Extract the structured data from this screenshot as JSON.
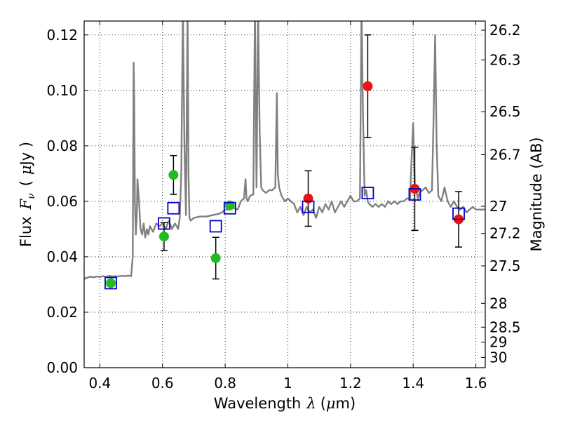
{
  "chart_data": {
    "type": "scatter",
    "xlabel_prefix": "Wavelength",
    "xlabel_math": "λ",
    "xlabel_unit_open": "(",
    "xlabel_unit_mu": "μ",
    "xlabel_unit_rest": "m)",
    "ylabel_prefix": "Flux",
    "ylabel_math_F": "F",
    "ylabel_math_sub": "ν",
    "ylabel_unit_open": "(",
    "ylabel_unit_mu": "μ",
    "ylabel_unit_rest": "Jy )",
    "y2label": "Magnitude (AB)",
    "xlim": [
      0.35,
      1.63
    ],
    "ylim": [
      0.0,
      0.125
    ],
    "grid": true,
    "x_ticks": [
      0.4,
      0.6,
      0.8,
      1.0,
      1.2,
      1.4,
      1.6
    ],
    "x_tick_labels": [
      "0.4",
      "0.6",
      "0.8",
      "1",
      "1.2",
      "1.4",
      "1.6"
    ],
    "y_ticks": [
      0.0,
      0.02,
      0.04,
      0.06,
      0.08,
      0.1,
      0.12
    ],
    "y_tick_labels": [
      "0.00",
      "0.02",
      "0.04",
      "0.06",
      "0.08",
      "0.10",
      "0.12"
    ],
    "y2_ticks": [
      {
        "label": "26.2",
        "flux": 0.1217
      },
      {
        "label": "26.3",
        "flux": 0.111
      },
      {
        "label": "26.5",
        "flux": 0.0923
      },
      {
        "label": "26.7",
        "flux": 0.0768
      },
      {
        "label": "27",
        "flux": 0.0582
      },
      {
        "label": "27.2",
        "flux": 0.0484
      },
      {
        "label": "27.5",
        "flux": 0.0367
      },
      {
        "label": "28",
        "flux": 0.0232
      },
      {
        "label": "28.5",
        "flux": 0.0146
      },
      {
        "label": "29",
        "flux": 0.0092
      },
      {
        "label": "30",
        "flux": 0.0037
      }
    ],
    "colors": {
      "model": "#808080",
      "model_points": "#0000cc",
      "hst_points": "#22bb22",
      "ir_points": "#ee1111",
      "errorbar": "#000000",
      "grid": "#000000"
    },
    "model_spectrum": {
      "x": [
        0.35,
        0.36,
        0.37,
        0.38,
        0.39,
        0.4,
        0.41,
        0.42,
        0.43,
        0.44,
        0.45,
        0.46,
        0.47,
        0.48,
        0.49,
        0.5,
        0.505,
        0.508,
        0.51,
        0.512,
        0.515,
        0.518,
        0.52,
        0.525,
        0.53,
        0.535,
        0.54,
        0.545,
        0.55,
        0.555,
        0.56,
        0.57,
        0.58,
        0.59,
        0.6,
        0.61,
        0.62,
        0.63,
        0.64,
        0.65,
        0.655,
        0.66,
        0.665,
        0.67,
        0.675,
        0.68,
        0.683,
        0.686,
        0.69,
        0.7,
        0.72,
        0.74,
        0.76,
        0.78,
        0.79,
        0.8,
        0.81,
        0.82,
        0.83,
        0.84,
        0.85,
        0.86,
        0.865,
        0.868,
        0.872,
        0.88,
        0.89,
        0.895,
        0.9,
        0.905,
        0.91,
        0.915,
        0.92,
        0.93,
        0.94,
        0.95,
        0.96,
        0.965,
        0.968,
        0.972,
        0.98,
        0.99,
        1.0,
        1.01,
        1.02,
        1.03,
        1.04,
        1.05,
        1.06,
        1.07,
        1.08,
        1.09,
        1.1,
        1.11,
        1.12,
        1.13,
        1.14,
        1.15,
        1.16,
        1.17,
        1.18,
        1.19,
        1.2,
        1.21,
        1.22,
        1.23,
        1.235,
        1.24,
        1.245,
        1.25,
        1.255,
        1.26,
        1.27,
        1.28,
        1.29,
        1.3,
        1.31,
        1.32,
        1.33,
        1.34,
        1.35,
        1.36,
        1.37,
        1.38,
        1.39,
        1.395,
        1.4,
        1.405,
        1.41,
        1.415,
        1.42,
        1.43,
        1.44,
        1.45,
        1.46,
        1.465,
        1.47,
        1.475,
        1.48,
        1.49,
        1.5,
        1.51,
        1.52,
        1.53,
        1.54,
        1.55,
        1.56,
        1.57,
        1.58,
        1.59,
        1.6,
        1.61,
        1.62,
        1.63
      ],
      "y": [
        0.032,
        0.0325,
        0.0328,
        0.0326,
        0.0329,
        0.0327,
        0.033,
        0.0328,
        0.0331,
        0.0329,
        0.033,
        0.0329,
        0.0331,
        0.033,
        0.0332,
        0.033,
        0.04,
        0.11,
        0.095,
        0.06,
        0.048,
        0.055,
        0.068,
        0.06,
        0.05,
        0.048,
        0.052,
        0.047,
        0.05,
        0.048,
        0.051,
        0.049,
        0.052,
        0.051,
        0.052,
        0.05,
        0.053,
        0.05,
        0.052,
        0.05,
        0.054,
        0.07,
        0.13,
        0.08,
        0.055,
        0.13,
        0.07,
        0.054,
        0.053,
        0.054,
        0.0545,
        0.0545,
        0.055,
        0.0555,
        0.056,
        0.057,
        0.057,
        0.058,
        0.0575,
        0.057,
        0.06,
        0.061,
        0.068,
        0.061,
        0.06,
        0.062,
        0.0625,
        0.13,
        0.065,
        0.13,
        0.085,
        0.065,
        0.064,
        0.063,
        0.064,
        0.064,
        0.065,
        0.099,
        0.07,
        0.065,
        0.062,
        0.06,
        0.061,
        0.06,
        0.059,
        0.056,
        0.058,
        0.055,
        0.058,
        0.056,
        0.057,
        0.054,
        0.058,
        0.056,
        0.059,
        0.057,
        0.06,
        0.056,
        0.058,
        0.06,
        0.058,
        0.06,
        0.062,
        0.06,
        0.06,
        0.061,
        0.13,
        0.09,
        0.062,
        0.064,
        0.06,
        0.059,
        0.058,
        0.059,
        0.058,
        0.059,
        0.058,
        0.06,
        0.059,
        0.06,
        0.059,
        0.06,
        0.06,
        0.061,
        0.061,
        0.076,
        0.088,
        0.066,
        0.064,
        0.061,
        0.063,
        0.064,
        0.065,
        0.063,
        0.064,
        0.09,
        0.12,
        0.08,
        0.062,
        0.06,
        0.065,
        0.06,
        0.058,
        0.06,
        0.058,
        0.057,
        0.058,
        0.056,
        0.057,
        0.058,
        0.057,
        0.057,
        0.057,
        0.057
      ]
    },
    "series": [
      {
        "role": "model_points",
        "marker": "open-square",
        "x": [
          0.435,
          0.605,
          0.635,
          0.77,
          0.815,
          1.065,
          1.255,
          1.405,
          1.545
        ],
        "y": [
          0.0305,
          0.052,
          0.0575,
          0.051,
          0.0575,
          0.058,
          0.063,
          0.0625,
          0.0555
        ]
      },
      {
        "role": "hst_points",
        "marker": "filled-circle",
        "x": [
          0.435,
          0.605,
          0.635,
          0.77,
          0.815
        ],
        "y": [
          0.0305,
          0.0473,
          0.0695,
          0.0395,
          0.0585
        ],
        "err": [
          0.0,
          0.005,
          0.007,
          0.0075,
          0.0
        ]
      },
      {
        "role": "ir_points",
        "marker": "filled-circle",
        "x": [
          1.065,
          1.255,
          1.405,
          1.545
        ],
        "y": [
          0.061,
          0.1015,
          0.0645,
          0.0535
        ],
        "err": [
          0.01,
          0.0185,
          0.015,
          0.01
        ]
      }
    ]
  }
}
